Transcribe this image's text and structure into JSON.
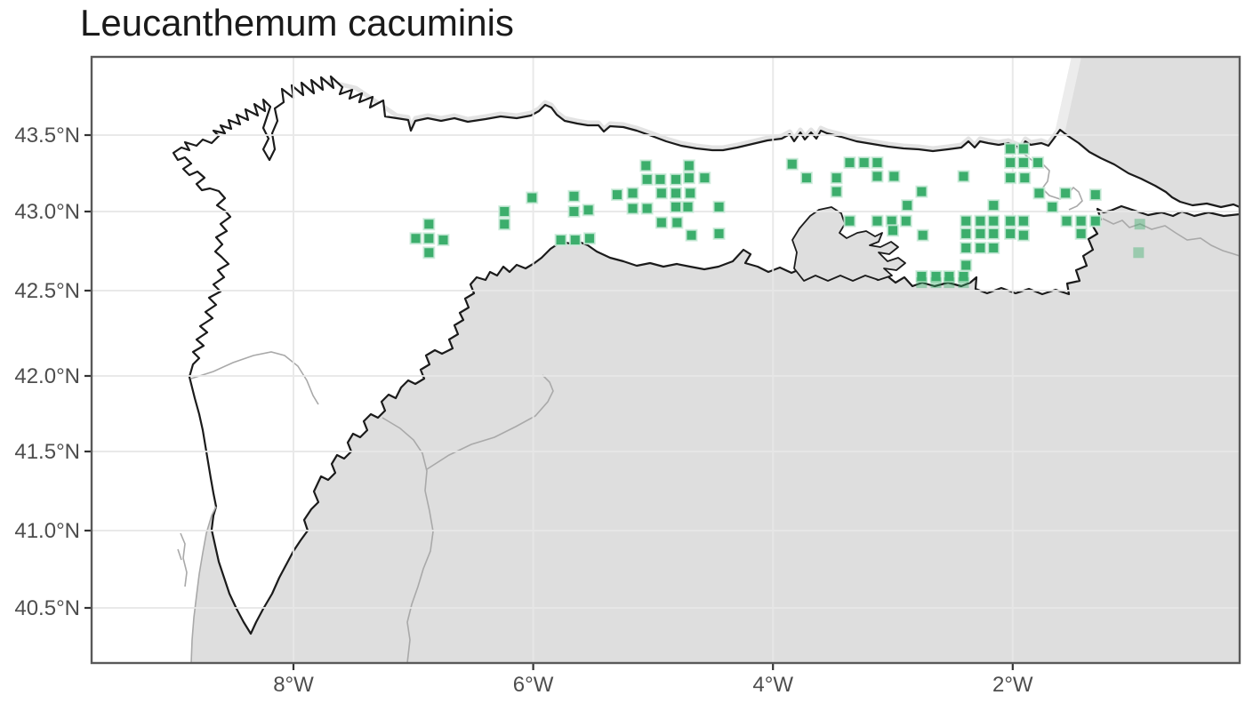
{
  "title": "Leucanthemum cacuminis",
  "axes": {
    "x": {
      "ticks": [
        {
          "label": "8°W",
          "lon": -8
        },
        {
          "label": "6°W",
          "lon": -6
        },
        {
          "label": "4°W",
          "lon": -4
        },
        {
          "label": "2°W",
          "lon": -2
        }
      ]
    },
    "y": {
      "ticks": [
        {
          "label": "43.5°N",
          "lat": 43.5
        },
        {
          "label": "43.0°N",
          "lat": 43.0
        },
        {
          "label": "42.5°N",
          "lat": 42.5
        },
        {
          "label": "42.0°N",
          "lat": 42.0
        },
        {
          "label": "41.5°N",
          "lat": 41.5
        },
        {
          "label": "41.0°N",
          "lat": 41.0
        },
        {
          "label": "40.5°N",
          "lat": 40.5
        }
      ]
    }
  },
  "colors": {
    "sea": "#FFFFFF",
    "study_area": "#FFFFFF",
    "land_outside": "#DEDEDE",
    "shadow": "#E3E3E3",
    "france_shadow": "#ECECEC",
    "coastline": "#1B1B1B",
    "border_minor": "#A9A9A9",
    "gridline": "#E7E7E7",
    "panel_border": "#595959",
    "tick": "#333333",
    "tick_label": "#4D4D4D",
    "title": "#1A1A1A",
    "occurrence": "#3CAE6C",
    "occurrence_halo": "#CDEBDA"
  },
  "chart_data": {
    "type": "scatter",
    "title": "Leucanthemum cacuminis",
    "marker": "square",
    "xlim": [
      -9.7,
      -0.1
    ],
    "ylim": [
      40.1,
      44.0
    ],
    "grid": "on",
    "legend": "none",
    "series": [
      {
        "name": "occurrence-grid-cells",
        "color": "#3CAE6C",
        "opacity": 1,
        "points": [
          [
            -6.98,
            42.83
          ],
          [
            -6.87,
            42.92
          ],
          [
            -6.87,
            42.83
          ],
          [
            -6.87,
            42.74
          ],
          [
            -6.75,
            42.82
          ],
          [
            -6.24,
            43.0
          ],
          [
            -6.24,
            42.92
          ],
          [
            -6.01,
            43.09
          ],
          [
            -5.66,
            43.1
          ],
          [
            -5.66,
            43.0
          ],
          [
            -5.54,
            43.01
          ],
          [
            -5.77,
            42.82
          ],
          [
            -5.65,
            42.82
          ],
          [
            -5.53,
            42.83
          ],
          [
            -5.3,
            43.11
          ],
          [
            -5.17,
            43.12
          ],
          [
            -5.17,
            43.02
          ],
          [
            -5.05,
            43.02
          ],
          [
            -5.06,
            43.3
          ],
          [
            -5.05,
            43.21
          ],
          [
            -4.94,
            43.21
          ],
          [
            -4.93,
            43.12
          ],
          [
            -4.93,
            42.93
          ],
          [
            -4.81,
            43.21
          ],
          [
            -4.81,
            43.12
          ],
          [
            -4.81,
            43.03
          ],
          [
            -4.8,
            42.93
          ],
          [
            -4.7,
            43.3
          ],
          [
            -4.7,
            43.22
          ],
          [
            -4.69,
            43.12
          ],
          [
            -4.71,
            43.03
          ],
          [
            -4.68,
            42.85
          ],
          [
            -4.57,
            43.22
          ],
          [
            -4.45,
            43.03
          ],
          [
            -4.45,
            42.86
          ],
          [
            -3.84,
            43.31
          ],
          [
            -3.72,
            43.22
          ],
          [
            -3.47,
            43.22
          ],
          [
            -3.47,
            43.13
          ],
          [
            -3.36,
            43.32
          ],
          [
            -3.24,
            43.32
          ],
          [
            -3.13,
            43.32
          ],
          [
            -3.13,
            43.23
          ],
          [
            -2.99,
            43.23
          ],
          [
            -2.88,
            43.04
          ],
          [
            -2.76,
            43.13
          ],
          [
            -3.36,
            42.94
          ],
          [
            -3.13,
            42.94
          ],
          [
            -3.01,
            42.94
          ],
          [
            -2.89,
            42.94
          ],
          [
            -3.0,
            42.88
          ],
          [
            -2.75,
            42.85
          ],
          [
            -2.76,
            42.59
          ],
          [
            -2.64,
            42.59
          ],
          [
            -2.53,
            42.59
          ],
          [
            -2.41,
            42.59
          ],
          [
            -2.41,
            43.23
          ],
          [
            -2.39,
            42.94
          ],
          [
            -2.39,
            42.86
          ],
          [
            -2.39,
            42.77
          ],
          [
            -2.39,
            42.66
          ],
          [
            -2.27,
            42.94
          ],
          [
            -2.27,
            42.86
          ],
          [
            -2.27,
            42.77
          ],
          [
            -2.16,
            43.04
          ],
          [
            -2.16,
            42.94
          ],
          [
            -2.16,
            42.86
          ],
          [
            -2.16,
            42.77
          ],
          [
            -2.02,
            43.41
          ],
          [
            -1.91,
            43.41
          ],
          [
            -2.02,
            43.32
          ],
          [
            -1.91,
            43.32
          ],
          [
            -1.79,
            43.32
          ],
          [
            -2.02,
            43.22
          ],
          [
            -1.9,
            43.22
          ],
          [
            -1.78,
            43.12
          ],
          [
            -1.67,
            43.03
          ],
          [
            -1.56,
            43.12
          ],
          [
            -1.31,
            43.11
          ],
          [
            -2.02,
            42.94
          ],
          [
            -1.91,
            42.94
          ],
          [
            -1.55,
            42.94
          ],
          [
            -1.43,
            42.94
          ],
          [
            -1.31,
            42.94
          ],
          [
            -2.02,
            42.86
          ],
          [
            -1.91,
            42.85
          ],
          [
            -1.43,
            42.86
          ]
        ]
      },
      {
        "name": "occurrence-grid-cells-faded",
        "color": "#3CAE6C",
        "opacity": 0.42,
        "points": [
          [
            -0.94,
            42.92
          ],
          [
            -0.95,
            42.74
          ],
          [
            -2.76,
            42.55
          ],
          [
            -2.64,
            42.55
          ],
          [
            -2.53,
            42.55
          ],
          [
            -2.41,
            42.55
          ]
        ]
      }
    ]
  }
}
